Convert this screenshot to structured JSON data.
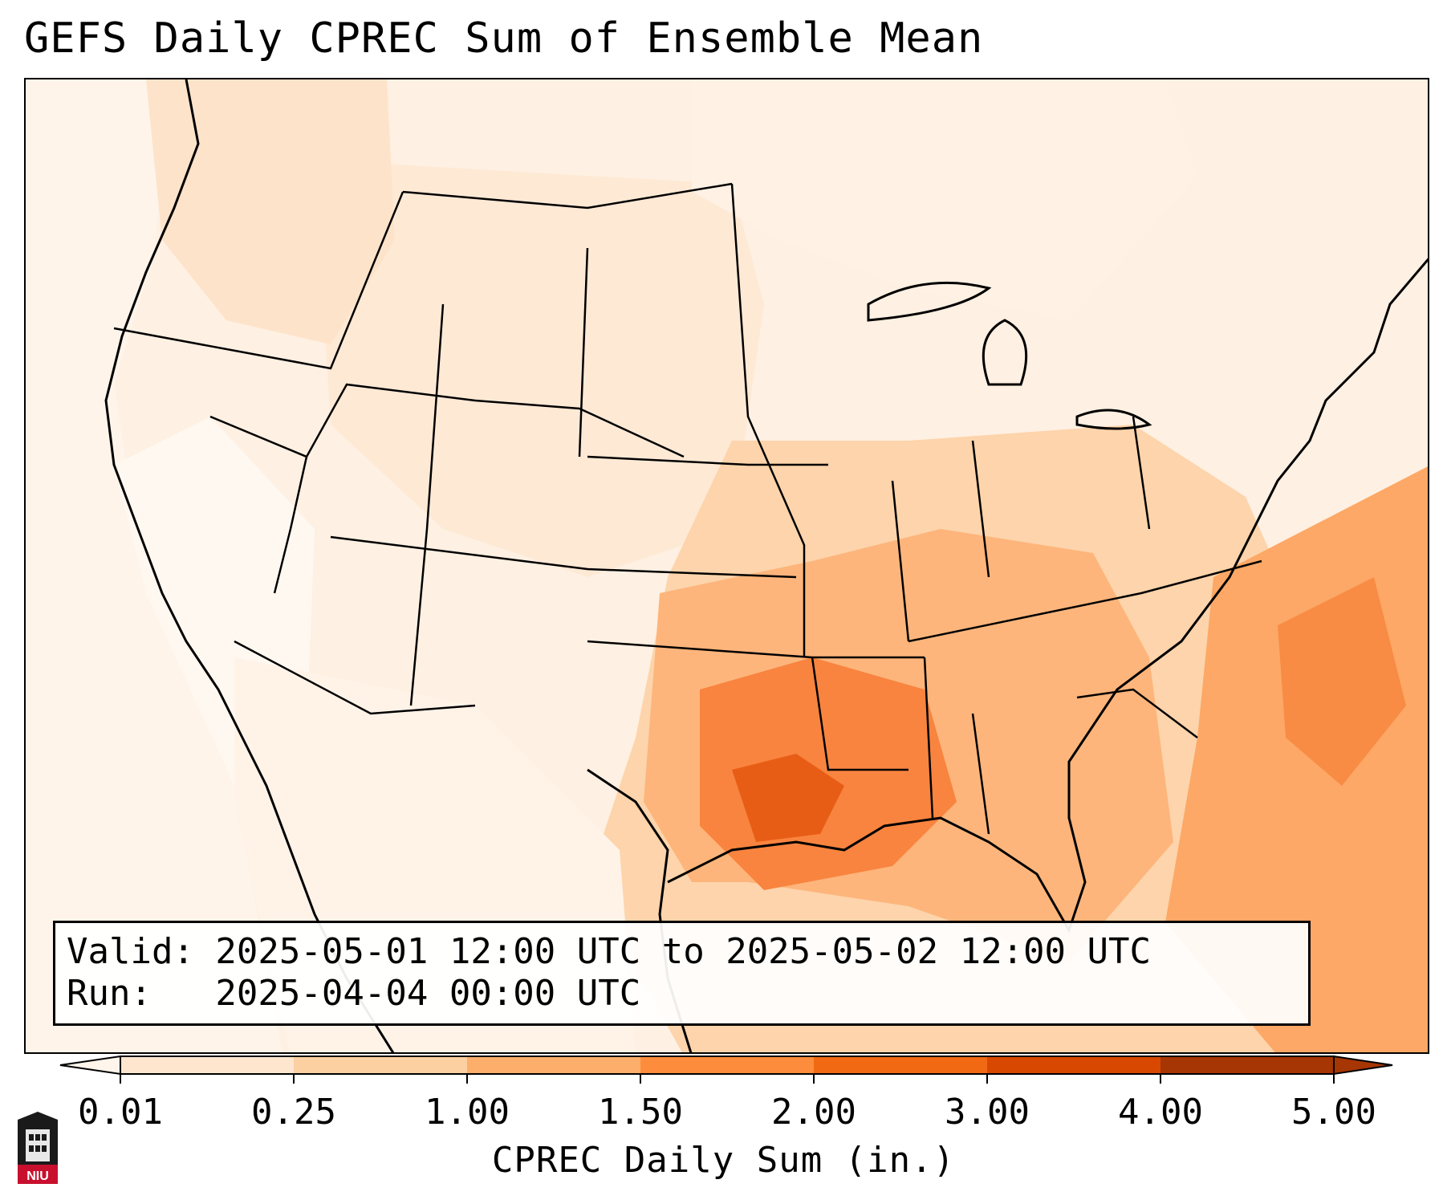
{
  "title": "GEFS Daily CPREC Sum of Ensemble Mean",
  "info": {
    "valid": "Valid: 2025-05-01 12:00 UTC to 2025-05-02 12:00 UTC",
    "run": "Run:   2025-04-04 00:00 UTC"
  },
  "colorbar": {
    "label": "CPREC Daily Sum (in.)",
    "ticks": [
      "0.01",
      "0.25",
      "1.00",
      "1.50",
      "2.00",
      "3.00",
      "4.00",
      "5.00"
    ],
    "colors": [
      "#fff5ea",
      "#fee6ce",
      "#fdd0a2",
      "#fdae6b",
      "#fd8d3c",
      "#f16913",
      "#d94801",
      "#a63603"
    ]
  },
  "logo": {
    "text": "NIU",
    "name": "niu-logo"
  },
  "map": {
    "background_color": "#fef3e8",
    "precip_regions": [
      {
        "region": "gulf-coast-texas",
        "level": 2.0
      },
      {
        "region": "lower-mississippi-valley",
        "level": 1.5
      },
      {
        "region": "ohio-valley",
        "level": 1.0
      },
      {
        "region": "southeast",
        "level": 1.0
      },
      {
        "region": "western-atlantic",
        "level": 1.5
      },
      {
        "region": "northern-rockies",
        "level": 0.25
      },
      {
        "region": "pacific-northwest",
        "level": 0.25
      }
    ]
  }
}
